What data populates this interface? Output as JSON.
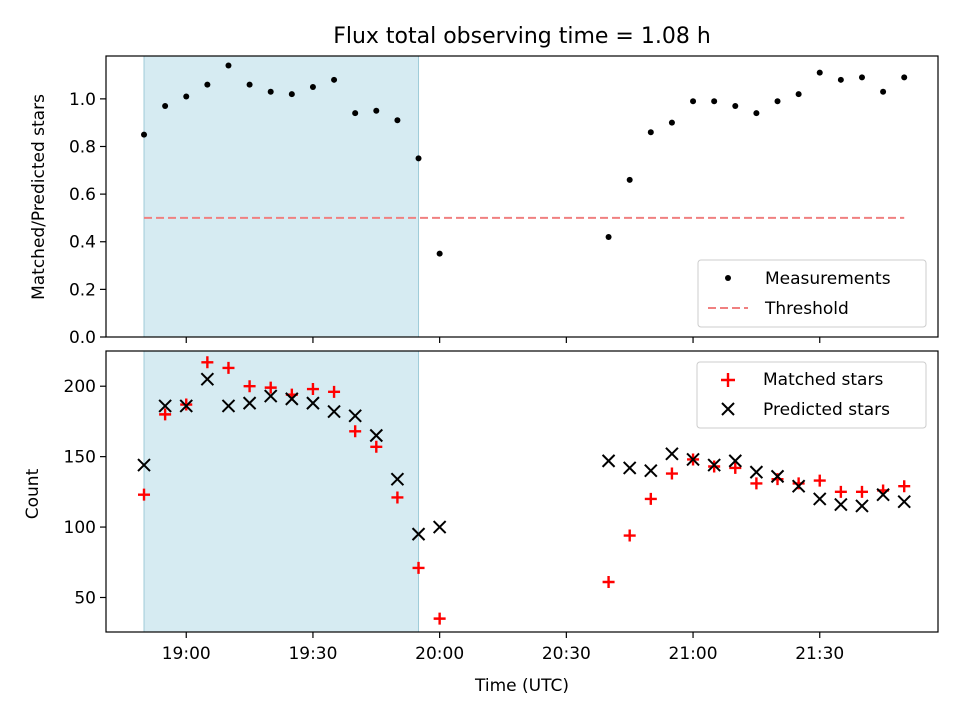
{
  "title": "Flux total observing time = 1.08 h",
  "chart_data": [
    {
      "type": "scatter",
      "ylabel": "Matched/Predicted stars",
      "xlabel": "",
      "ylim": [
        0,
        1.18
      ],
      "yticks": [
        0.0,
        0.2,
        0.4,
        0.6,
        0.8,
        1.0
      ],
      "ytick_labels": [
        "0.0",
        "0.2",
        "0.4",
        "0.6",
        "0.8",
        "1.0"
      ],
      "legend": {
        "position": "bottom-right",
        "entries": [
          "Measurements",
          "Threshold"
        ]
      },
      "shaded_region": {
        "x0": "18:50",
        "x1": "19:55",
        "color": "#add8e6"
      },
      "threshold": {
        "name": "Threshold",
        "value": 0.5,
        "x0": "18:50",
        "x1": "21:50",
        "color": "#f08080",
        "style": "dashed"
      },
      "series": [
        {
          "name": "Measurements",
          "color": "#000000",
          "marker": "dot",
          "points": [
            [
              "18:50",
              0.85
            ],
            [
              "18:55",
              0.97
            ],
            [
              "19:00",
              1.01
            ],
            [
              "19:05",
              1.06
            ],
            [
              "19:10",
              1.14
            ],
            [
              "19:15",
              1.06
            ],
            [
              "19:20",
              1.03
            ],
            [
              "19:25",
              1.02
            ],
            [
              "19:30",
              1.05
            ],
            [
              "19:35",
              1.08
            ],
            [
              "19:40",
              0.94
            ],
            [
              "19:45",
              0.95
            ],
            [
              "19:50",
              0.91
            ],
            [
              "19:55",
              0.75
            ],
            [
              "20:00",
              0.35
            ],
            [
              "20:40",
              0.42
            ],
            [
              "20:45",
              0.66
            ],
            [
              "20:50",
              0.86
            ],
            [
              "20:55",
              0.9
            ],
            [
              "21:00",
              0.99
            ],
            [
              "21:05",
              0.99
            ],
            [
              "21:10",
              0.97
            ],
            [
              "21:15",
              0.94
            ],
            [
              "21:20",
              0.99
            ],
            [
              "21:25",
              1.02
            ],
            [
              "21:30",
              1.11
            ],
            [
              "21:35",
              1.08
            ],
            [
              "21:40",
              1.09
            ],
            [
              "21:45",
              1.03
            ],
            [
              "21:50",
              1.09
            ]
          ]
        }
      ]
    },
    {
      "type": "scatter",
      "ylabel": "Count",
      "xlabel": "Time (UTC)",
      "ylim": [
        25.5,
        225
      ],
      "yticks": [
        50,
        100,
        150,
        200
      ],
      "ytick_labels": [
        "50",
        "100",
        "150",
        "200"
      ],
      "xlim": [
        "18:41",
        "21:58"
      ],
      "xticks": [
        "19:00",
        "19:30",
        "20:00",
        "20:30",
        "21:00",
        "21:30"
      ],
      "xtick_labels": [
        "19:00",
        "19:30",
        "20:00",
        "20:30",
        "21:00",
        "21:30"
      ],
      "legend": {
        "position": "top-right",
        "entries": [
          "Matched stars",
          "Predicted stars"
        ]
      },
      "shaded_region": {
        "x0": "18:50",
        "x1": "19:55",
        "color": "#add8e6"
      },
      "series": [
        {
          "name": "Matched stars",
          "color": "#ff0000",
          "marker": "plus",
          "points": [
            [
              "18:50",
              123
            ],
            [
              "18:55",
              180
            ],
            [
              "19:00",
              187
            ],
            [
              "19:05",
              217
            ],
            [
              "19:10",
              213
            ],
            [
              "19:15",
              200
            ],
            [
              "19:20",
              199
            ],
            [
              "19:25",
              194
            ],
            [
              "19:30",
              198
            ],
            [
              "19:35",
              196
            ],
            [
              "19:40",
              168
            ],
            [
              "19:45",
              157
            ],
            [
              "19:50",
              121
            ],
            [
              "19:55",
              71
            ],
            [
              "20:00",
              35
            ],
            [
              "20:40",
              61
            ],
            [
              "20:45",
              94
            ],
            [
              "20:50",
              120
            ],
            [
              "20:55",
              138
            ],
            [
              "21:00",
              148
            ],
            [
              "21:05",
              143
            ],
            [
              "21:10",
              142
            ],
            [
              "21:15",
              131
            ],
            [
              "21:20",
              134
            ],
            [
              "21:25",
              131
            ],
            [
              "21:30",
              133
            ],
            [
              "21:35",
              125
            ],
            [
              "21:40",
              125
            ],
            [
              "21:45",
              126
            ],
            [
              "21:50",
              129
            ]
          ]
        },
        {
          "name": "Predicted stars",
          "color": "#000000",
          "marker": "x",
          "points": [
            [
              "18:50",
              144
            ],
            [
              "18:55",
              186
            ],
            [
              "19:00",
              186
            ],
            [
              "19:05",
              205
            ],
            [
              "19:10",
              186
            ],
            [
              "19:15",
              188
            ],
            [
              "19:20",
              193
            ],
            [
              "19:25",
              191
            ],
            [
              "19:30",
              188
            ],
            [
              "19:35",
              182
            ],
            [
              "19:40",
              179
            ],
            [
              "19:45",
              165
            ],
            [
              "19:50",
              134
            ],
            [
              "19:55",
              95
            ],
            [
              "20:00",
              100
            ],
            [
              "20:40",
              147
            ],
            [
              "20:45",
              142
            ],
            [
              "20:50",
              140
            ],
            [
              "20:55",
              152
            ],
            [
              "21:00",
              148
            ],
            [
              "21:05",
              144
            ],
            [
              "21:10",
              147
            ],
            [
              "21:15",
              139
            ],
            [
              "21:20",
              136
            ],
            [
              "21:25",
              129
            ],
            [
              "21:30",
              120
            ],
            [
              "21:35",
              116
            ],
            [
              "21:40",
              115
            ],
            [
              "21:45",
              123
            ],
            [
              "21:50",
              118
            ]
          ]
        }
      ]
    }
  ]
}
